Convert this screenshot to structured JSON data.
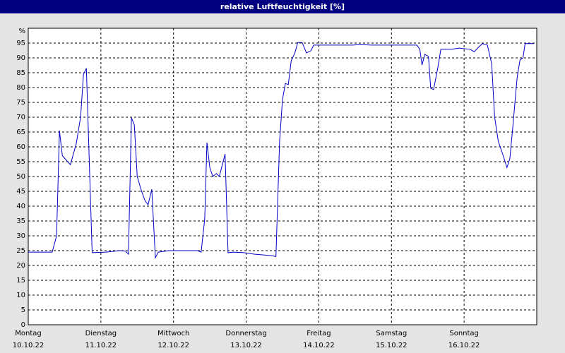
{
  "chart_data": {
    "type": "line",
    "title": "relative Luftfeuchtigkeit [%]",
    "x": [
      0,
      0.33,
      0.39,
      0.43,
      0.47,
      0.58,
      0.66,
      0.72,
      0.76,
      0.8,
      0.85,
      0.88,
      1.07,
      1.26,
      1.34,
      1.38,
      1.42,
      1.46,
      1.5,
      1.56,
      1.61,
      1.65,
      1.7,
      1.75,
      1.79,
      1.94,
      2.33,
      2.38,
      2.43,
      2.46,
      2.5,
      2.54,
      2.59,
      2.63,
      2.71,
      2.75,
      2.82,
      2.97,
      3.11,
      3.35,
      3.41,
      3.46,
      3.5,
      3.54,
      3.58,
      3.62,
      3.67,
      3.71,
      3.77,
      3.83,
      3.89,
      3.93,
      4.08,
      4.47,
      4.57,
      4.72,
      5.01,
      5.35,
      5.39,
      5.42,
      5.46,
      5.51,
      5.54,
      5.58,
      5.64,
      5.68,
      5.83,
      5.93,
      6.08,
      6.14,
      6.2,
      6.25,
      6.32,
      6.38,
      6.42,
      6.47,
      6.53,
      6.59,
      6.63,
      6.67,
      6.73,
      6.77,
      6.81,
      6.84,
      6.96
    ],
    "series": [
      {
        "color": "#0000c8",
        "values": [
          24.5,
          24.5,
          30,
          65.5,
          57,
          54,
          61,
          70,
          84.5,
          86.5,
          47.6,
          24.3,
          24.5,
          25,
          24.8,
          23.8,
          69.8,
          67.4,
          50,
          45,
          41.7,
          40.5,
          45.7,
          22.6,
          24.5,
          25,
          25,
          24.5,
          35.7,
          61.4,
          53,
          50,
          51,
          50,
          57.6,
          24.3,
          24.5,
          24.3,
          23.8,
          23.3,
          23,
          62,
          76,
          81.4,
          81,
          89,
          91.7,
          95.2,
          95.2,
          91.7,
          92.4,
          94.3,
          94.3,
          94.3,
          94.5,
          94.3,
          94.3,
          94.3,
          92.9,
          87.6,
          91.2,
          90.5,
          79.8,
          79.3,
          86.9,
          92.9,
          92.9,
          93.3,
          92.9,
          92.1,
          93.6,
          94.8,
          94.3,
          88,
          70.2,
          61.9,
          57.6,
          53,
          56,
          66.7,
          83.3,
          89.3,
          90,
          94.8,
          94.8
        ]
      }
    ],
    "xlim": [
      0,
      7
    ],
    "xticks": [
      {
        "value": 0,
        "label": "Montag",
        "date": "10.10.22"
      },
      {
        "value": 1,
        "label": "Dienstag",
        "date": "11.10.22"
      },
      {
        "value": 2,
        "label": "Mittwoch",
        "date": "12.10.22"
      },
      {
        "value": 3,
        "label": "Donnerstag",
        "date": "13.10.22"
      },
      {
        "value": 4,
        "label": "Freitag",
        "date": "14.10.22"
      },
      {
        "value": 5,
        "label": "Samstag",
        "date": "15.10.22"
      },
      {
        "value": 6,
        "label": "Sonntag",
        "date": "16.10.22"
      }
    ],
    "ylim": [
      0,
      100
    ],
    "yticks": [
      0,
      5,
      10,
      15,
      20,
      25,
      30,
      35,
      40,
      45,
      50,
      55,
      60,
      65,
      70,
      75,
      80,
      85,
      90,
      95,
      {
        "value": 100,
        "label": "%"
      }
    ],
    "grid": true
  }
}
